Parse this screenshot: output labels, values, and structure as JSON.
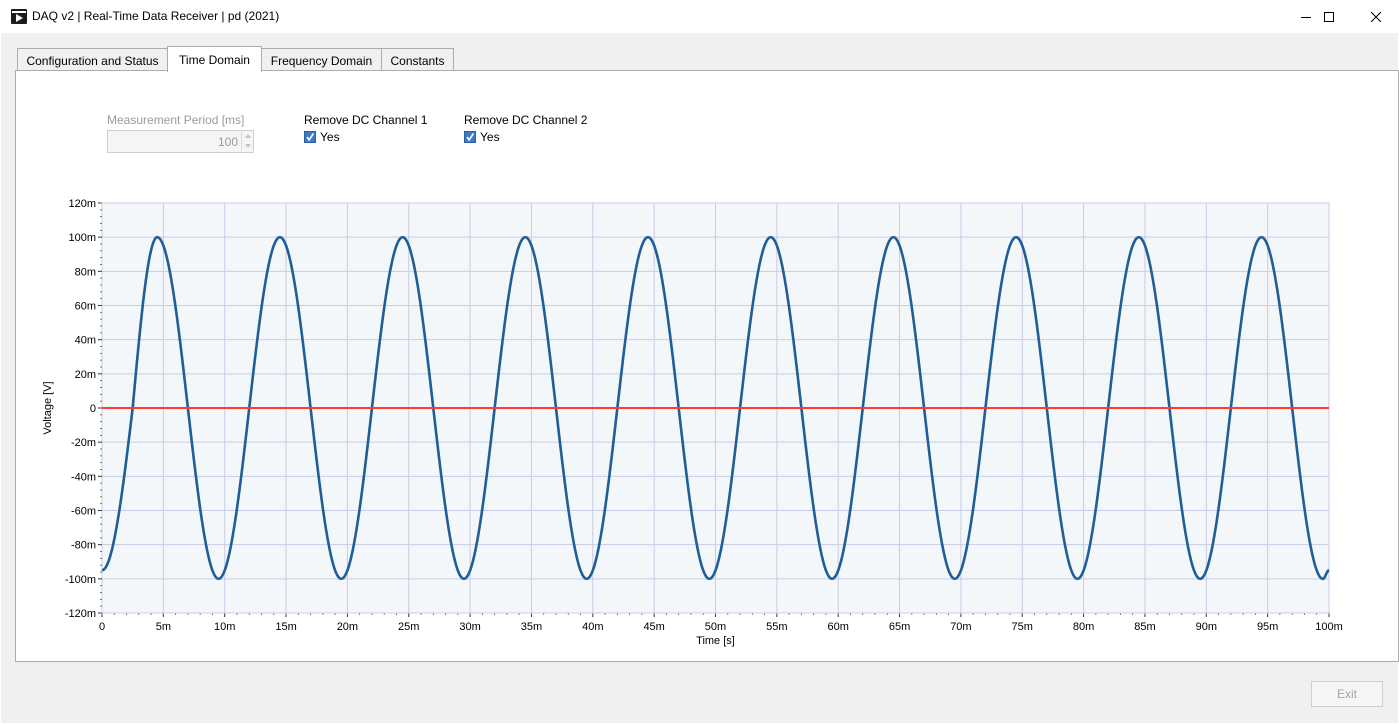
{
  "window": {
    "title": "DAQ v2 | Real-Time Data Receiver | pd (2021)",
    "app_icon": "labview-vi-icon",
    "controls": {
      "minimize": "minimize-icon",
      "maximize": "maximize-icon",
      "close": "close-icon"
    }
  },
  "tabs": [
    {
      "label": "Configuration and Status",
      "active": false
    },
    {
      "label": "Time Domain",
      "active": true
    },
    {
      "label": "Frequency Domain",
      "active": false
    },
    {
      "label": "Constants",
      "active": false
    }
  ],
  "controls": {
    "measurement_period": {
      "label": "Measurement Period [ms]",
      "value": "100",
      "enabled": false
    },
    "remove_dc_ch1": {
      "label": "Remove DC Channel 1",
      "checkbox_label": "Yes",
      "checked": true
    },
    "remove_dc_ch2": {
      "label": "Remove DC Channel 2",
      "checkbox_label": "Yes",
      "checked": true
    }
  },
  "chart_data": {
    "type": "line",
    "xlabel": "Time [s]",
    "ylabel": "Voltage [V]",
    "xlim": [
      0,
      0.1
    ],
    "ylim": [
      -0.12,
      0.12
    ],
    "grid": true,
    "x_ticks": [
      0,
      0.005,
      0.01,
      0.015,
      0.02,
      0.025,
      0.03,
      0.035,
      0.04,
      0.045,
      0.05,
      0.055,
      0.06,
      0.065,
      0.07,
      0.075,
      0.08,
      0.085,
      0.09,
      0.095,
      0.1
    ],
    "x_tick_labels": [
      "0",
      "5m",
      "10m",
      "15m",
      "20m",
      "25m",
      "30m",
      "35m",
      "40m",
      "45m",
      "50m",
      "55m",
      "60m",
      "65m",
      "70m",
      "75m",
      "80m",
      "85m",
      "90m",
      "95m",
      "100m"
    ],
    "y_ticks": [
      0.12,
      0.1,
      0.08,
      0.06,
      0.04,
      0.02,
      0,
      -0.02,
      -0.04,
      -0.06,
      -0.08,
      -0.1,
      -0.12
    ],
    "y_tick_labels": [
      "120m",
      "100m",
      "80m",
      "60m",
      "40m",
      "20m",
      "0",
      "-20m",
      "-40m",
      "-60m",
      "-80m",
      "-100m",
      "-120m"
    ],
    "series": [
      {
        "color": "#1f5e96",
        "x": [
          0,
          0.0025,
          0.0045,
          0.007,
          0.0095,
          0.012,
          0.0145,
          0.017,
          0.0195,
          0.022,
          0.0245,
          0.027,
          0.0295,
          0.032,
          0.0345,
          0.037,
          0.0395,
          0.042,
          0.0445,
          0.047,
          0.0495,
          0.052,
          0.0545,
          0.057,
          0.0595,
          0.062,
          0.0645,
          0.067,
          0.0695,
          0.072,
          0.0745,
          0.077,
          0.0795,
          0.082,
          0.0845,
          0.087,
          0.0895,
          0.092,
          0.0945,
          0.097,
          0.0995,
          0.1
        ],
        "y": [
          -0.095,
          0,
          0.1,
          0,
          -0.1,
          0,
          0.1,
          0,
          -0.1,
          0,
          0.1,
          0,
          -0.1,
          0,
          0.1,
          0,
          -0.1,
          0,
          0.1,
          0,
          -0.1,
          0,
          0.1,
          0,
          -0.1,
          0,
          0.1,
          0,
          -0.1,
          0,
          0.1,
          0,
          -0.1,
          0,
          0.1,
          0,
          -0.1,
          0,
          0.1,
          0,
          -0.1,
          -0.095
        ]
      },
      {
        "color": "#ff3b2f",
        "x": [
          0,
          0.1
        ],
        "y": [
          0,
          0
        ]
      }
    ],
    "plot_colors": {
      "background": "#f4f7f9",
      "grid": "#c8cce6"
    }
  },
  "exit_button": {
    "label": "Exit",
    "enabled": false
  }
}
